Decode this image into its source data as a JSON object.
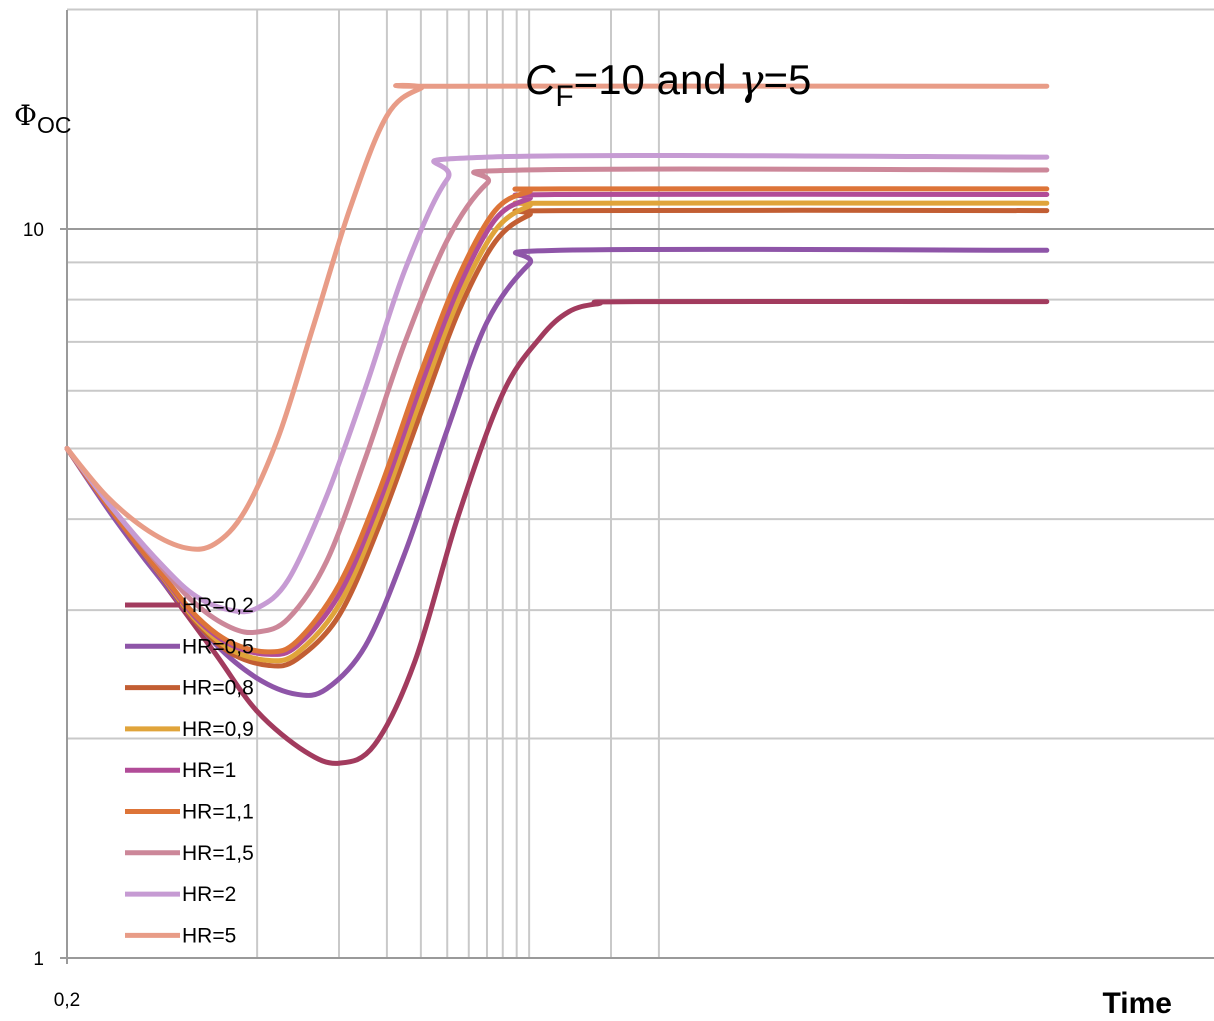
{
  "chart_data": {
    "type": "line",
    "title_parts": {
      "var": "C",
      "sub": "F",
      "mid": "=10 and ",
      "greek": "γ",
      "end": "=5"
    },
    "ylabel_parts": {
      "main": "Φ",
      "sub": "OC"
    },
    "xlabel": "Time",
    "x_scale": "log",
    "y_scale": "log",
    "xlim": [
      0.2,
      800
    ],
    "ylim": [
      1,
      20
    ],
    "ytick_labels": [
      "1",
      "10"
    ],
    "xtick_labels": [
      "0,2"
    ],
    "grid": true,
    "legend_position": "left-lower",
    "series": [
      {
        "name": "HR=0,2",
        "color": "#A23B5E",
        "points": [
          [
            0.2,
            5
          ],
          [
            0.3,
            4.05
          ],
          [
            0.45,
            3.28
          ],
          [
            0.7,
            2.62
          ],
          [
            1.0,
            2.18
          ],
          [
            1.5,
            1.92
          ],
          [
            2.0,
            1.85
          ],
          [
            2.7,
            1.96
          ],
          [
            3.8,
            2.55
          ],
          [
            5.5,
            4.05
          ],
          [
            8.0,
            5.95
          ],
          [
            11,
            7.1
          ],
          [
            14,
            7.7
          ],
          [
            18,
            7.9
          ],
          [
            25,
            7.95
          ],
          [
            800,
            7.95
          ]
        ]
      },
      {
        "name": "HR=0,5",
        "color": "#8E55A8",
        "points": [
          [
            0.2,
            5
          ],
          [
            0.3,
            4.0
          ],
          [
            0.45,
            3.28
          ],
          [
            0.7,
            2.7
          ],
          [
            1.0,
            2.42
          ],
          [
            1.4,
            2.3
          ],
          [
            1.8,
            2.34
          ],
          [
            2.5,
            2.68
          ],
          [
            3.5,
            3.6
          ],
          [
            5.0,
            5.3
          ],
          [
            7.0,
            7.45
          ],
          [
            10,
            8.95
          ],
          [
            13,
            9.35
          ],
          [
            800,
            9.35
          ]
        ]
      },
      {
        "name": "HR=0,8",
        "color": "#C25E33",
        "points": [
          [
            0.2,
            5
          ],
          [
            0.3,
            4.05
          ],
          [
            0.45,
            3.32
          ],
          [
            0.6,
            2.88
          ],
          [
            0.8,
            2.62
          ],
          [
            1.1,
            2.52
          ],
          [
            1.4,
            2.57
          ],
          [
            2.0,
            2.95
          ],
          [
            2.8,
            3.9
          ],
          [
            4.0,
            5.6
          ],
          [
            5.5,
            7.7
          ],
          [
            7.5,
            9.6
          ],
          [
            10,
            10.45
          ],
          [
            13,
            10.6
          ],
          [
            800,
            10.6
          ]
        ]
      },
      {
        "name": "HR=0,9",
        "color": "#E0A43A",
        "points": [
          [
            0.2,
            5
          ],
          [
            0.3,
            4.05
          ],
          [
            0.45,
            3.33
          ],
          [
            0.6,
            2.9
          ],
          [
            0.8,
            2.65
          ],
          [
            1.1,
            2.56
          ],
          [
            1.4,
            2.62
          ],
          [
            2.0,
            3.05
          ],
          [
            2.8,
            4.05
          ],
          [
            4.0,
            5.85
          ],
          [
            5.5,
            8.0
          ],
          [
            7.5,
            9.95
          ],
          [
            10,
            10.75
          ],
          [
            13,
            10.85
          ],
          [
            800,
            10.85
          ]
        ]
      },
      {
        "name": "HR=1",
        "color": "#B14C98",
        "points": [
          [
            0.2,
            5
          ],
          [
            0.3,
            4.05
          ],
          [
            0.45,
            3.34
          ],
          [
            0.6,
            2.92
          ],
          [
            0.8,
            2.69
          ],
          [
            1.1,
            2.61
          ],
          [
            1.4,
            2.68
          ],
          [
            2.0,
            3.15
          ],
          [
            2.8,
            4.2
          ],
          [
            4.0,
            6.1
          ],
          [
            5.5,
            8.3
          ],
          [
            7.5,
            10.3
          ],
          [
            10,
            11.0
          ],
          [
            13,
            11.15
          ],
          [
            800,
            11.15
          ]
        ]
      },
      {
        "name": "HR=1,1",
        "color": "#DD7438",
        "points": [
          [
            0.2,
            5
          ],
          [
            0.3,
            4.05
          ],
          [
            0.45,
            3.35
          ],
          [
            0.6,
            2.94
          ],
          [
            0.8,
            2.71
          ],
          [
            1.1,
            2.63
          ],
          [
            1.4,
            2.72
          ],
          [
            2.0,
            3.25
          ],
          [
            2.8,
            4.35
          ],
          [
            4.0,
            6.35
          ],
          [
            5.5,
            8.6
          ],
          [
            7.5,
            10.6
          ],
          [
            10,
            11.25
          ],
          [
            13,
            11.35
          ],
          [
            800,
            11.35
          ]
        ]
      },
      {
        "name": "HR=1,5",
        "color": "#CC8799",
        "points": [
          [
            0.2,
            5
          ],
          [
            0.3,
            4.1
          ],
          [
            0.45,
            3.42
          ],
          [
            0.6,
            3.05
          ],
          [
            0.8,
            2.84
          ],
          [
            1.0,
            2.8
          ],
          [
            1.3,
            2.92
          ],
          [
            1.8,
            3.5
          ],
          [
            2.5,
            4.85
          ],
          [
            3.5,
            7.0
          ],
          [
            5.0,
            9.65
          ],
          [
            7.0,
            11.55
          ],
          [
            9.5,
            12.05
          ],
          [
            800,
            12.05
          ]
        ]
      },
      {
        "name": "HR=2",
        "color": "#C69BD3",
        "points": [
          [
            0.2,
            5
          ],
          [
            0.3,
            4.1
          ],
          [
            0.45,
            3.45
          ],
          [
            0.6,
            3.13
          ],
          [
            0.8,
            3.0
          ],
          [
            1.0,
            3.02
          ],
          [
            1.3,
            3.3
          ],
          [
            1.8,
            4.3
          ],
          [
            2.5,
            6.05
          ],
          [
            3.5,
            8.8
          ],
          [
            5.0,
            11.7
          ],
          [
            7.0,
            12.55
          ],
          [
            800,
            12.55
          ]
        ]
      },
      {
        "name": "HR=5",
        "color": "#E89C87",
        "points": [
          [
            0.2,
            5
          ],
          [
            0.28,
            4.3
          ],
          [
            0.4,
            3.85
          ],
          [
            0.55,
            3.65
          ],
          [
            0.7,
            3.7
          ],
          [
            0.9,
            4.1
          ],
          [
            1.2,
            5.2
          ],
          [
            1.6,
            7.3
          ],
          [
            2.2,
            10.7
          ],
          [
            3.0,
            14.3
          ],
          [
            4.0,
            15.6
          ],
          [
            5.0,
            15.7
          ],
          [
            800,
            15.7
          ]
        ]
      }
    ]
  }
}
